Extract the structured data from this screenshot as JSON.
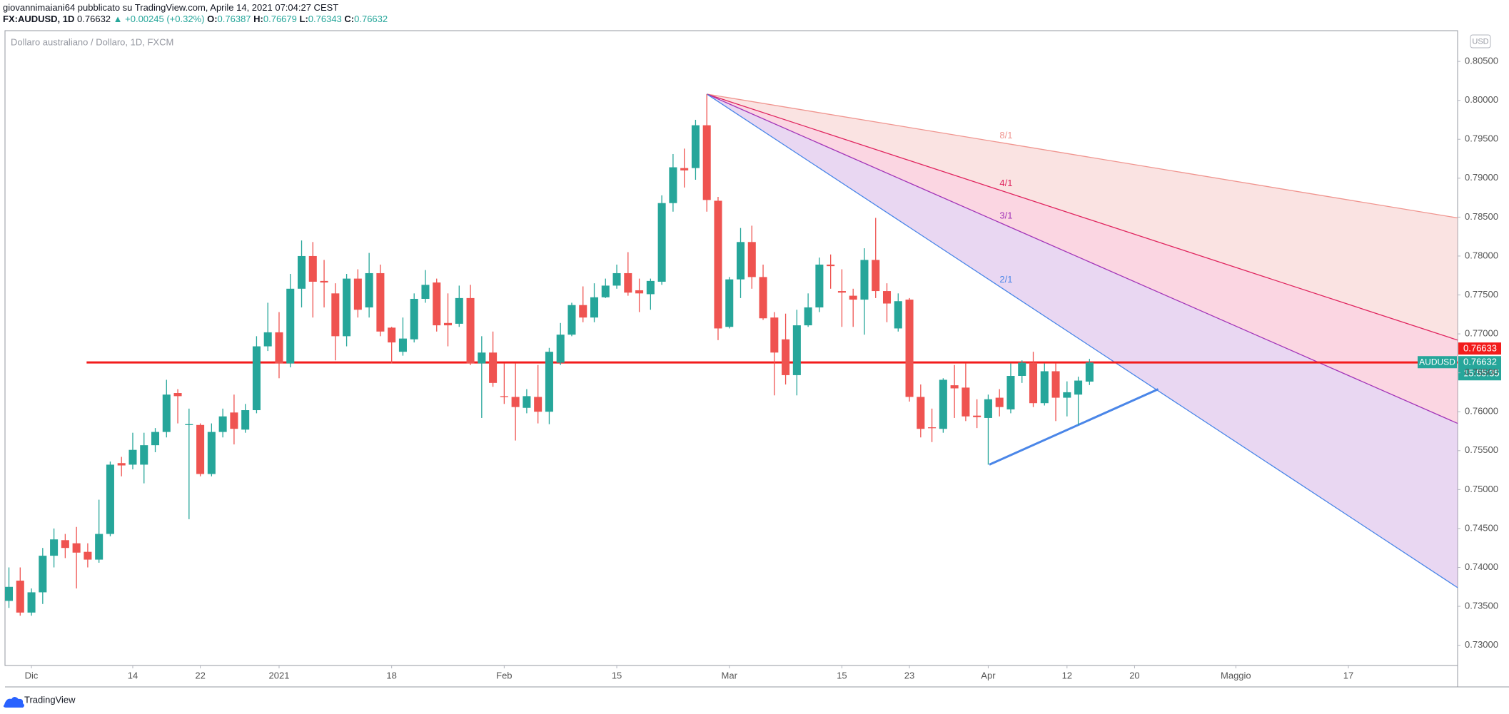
{
  "header": {
    "author_line": "giovannimaiani64 pubblicato su TradingView.com, Aprile 14, 2021 07:04:27 CEST",
    "symbol": "FX:AUDUSD, 1D",
    "last": "0.76632",
    "change": "▲ +0.00245 (+0.32%)",
    "ohlc": [
      {
        "label": "O:",
        "value": "0.76387"
      },
      {
        "label": "H:",
        "value": "0.76679"
      },
      {
        "label": "L:",
        "value": "0.76343"
      },
      {
        "label": "C:",
        "value": "0.76632"
      }
    ]
  },
  "chart_data": {
    "type": "candlestick",
    "legend_text": "Dollaro australiano / Dollaro, 1D, FXCM",
    "currency": "USD",
    "up_color": "#26a69a",
    "down_color": "#ef5350",
    "open": [
      0.7357,
      0.7383,
      0.7342,
      0.7368,
      0.7415,
      0.7435,
      0.7431,
      0.742,
      0.741,
      0.7443,
      0.7534,
      0.7532,
      0.7532,
      0.7557,
      0.7574,
      0.7624,
      0.7583,
      0.7583,
      0.752,
      0.7574,
      0.7599,
      0.7577,
      0.7602,
      0.7684,
      0.7702,
      0.7662,
      0.7758,
      0.78,
      0.7768,
      0.7752,
      0.7697,
      0.7771,
      0.7734,
      0.7778,
      0.7708,
      0.7677,
      0.7693,
      0.7745,
      0.7766,
      0.7714,
      0.7713,
      0.7746,
      0.7662,
      0.7676,
      0.762,
      0.7619,
      0.7605,
      0.7619,
      0.76,
      0.7663,
      0.7699,
      0.7737,
      0.7721,
      0.7747,
      0.7762,
      0.7778,
      0.7756,
      0.7751,
      0.7767,
      0.7868,
      0.7913,
      0.7913,
      0.7968,
      0.7871,
      0.7709,
      0.777,
      0.7818,
      0.7773,
      0.7721,
      0.7693,
      0.7647,
      0.7711,
      0.7734,
      0.7789,
      0.7755,
      0.7749,
      0.7744,
      0.7795,
      0.7755,
      0.7707,
      0.7744,
      0.7619,
      0.758,
      0.7578,
      0.7634,
      0.7631,
      0.7595,
      0.7592,
      0.7618,
      0.7603,
      0.7646,
      0.7663,
      0.7611,
      0.7652,
      0.7618,
      0.7622,
      0.76387
    ],
    "high": [
      0.74,
      0.74,
      0.7373,
      0.7425,
      0.745,
      0.7443,
      0.7452,
      0.7431,
      0.7487,
      0.7536,
      0.7542,
      0.7573,
      0.7573,
      0.7579,
      0.7641,
      0.7629,
      0.7604,
      0.7585,
      0.7585,
      0.7604,
      0.7622,
      0.761,
      0.7697,
      0.774,
      0.7728,
      0.7777,
      0.782,
      0.7818,
      0.7795,
      0.7765,
      0.7777,
      0.7783,
      0.7804,
      0.7789,
      0.7709,
      0.7721,
      0.7752,
      0.7782,
      0.7771,
      0.7752,
      0.7762,
      0.7763,
      0.7697,
      0.7703,
      0.7662,
      0.7662,
      0.7629,
      0.766,
      0.7682,
      0.7714,
      0.774,
      0.7761,
      0.7765,
      0.7771,
      0.7789,
      0.7805,
      0.7771,
      0.7771,
      0.7878,
      0.7931,
      0.7938,
      0.7975,
      0.8008,
      0.7876,
      0.7773,
      0.7836,
      0.7839,
      0.7789,
      0.7728,
      0.7726,
      0.7731,
      0.7752,
      0.7798,
      0.7802,
      0.7783,
      0.7758,
      0.781,
      0.7849,
      0.7765,
      0.7752,
      0.7746,
      0.7635,
      0.7604,
      0.7643,
      0.766,
      0.7662,
      0.7616,
      0.7622,
      0.7629,
      0.7662,
      0.7666,
      0.7677,
      0.7662,
      0.7662,
      0.7639,
      0.7645,
      0.76679
    ],
    "low": [
      0.7348,
      0.7338,
      0.7338,
      0.7353,
      0.74,
      0.7412,
      0.7373,
      0.74,
      0.7406,
      0.744,
      0.7517,
      0.7526,
      0.7508,
      0.7548,
      0.7567,
      0.7585,
      0.7462,
      0.7517,
      0.7517,
      0.7567,
      0.7558,
      0.7573,
      0.7598,
      0.7678,
      0.7643,
      0.7657,
      0.7734,
      0.7721,
      0.7734,
      0.7666,
      0.7684,
      0.7721,
      0.7721,
      0.7697,
      0.7662,
      0.7672,
      0.7689,
      0.774,
      0.7703,
      0.7684,
      0.7709,
      0.766,
      0.7592,
      0.7632,
      0.761,
      0.7563,
      0.7598,
      0.7585,
      0.7584,
      0.766,
      0.7697,
      0.7715,
      0.7715,
      0.7746,
      0.7758,
      0.7749,
      0.7728,
      0.7731,
      0.7763,
      0.7857,
      0.7888,
      0.7898,
      0.7857,
      0.7692,
      0.7707,
      0.7746,
      0.7758,
      0.7718,
      0.7621,
      0.7635,
      0.7621,
      0.7709,
      0.7728,
      0.7758,
      0.7709,
      0.7709,
      0.7699,
      0.7746,
      0.7715,
      0.7703,
      0.7613,
      0.7567,
      0.7561,
      0.7573,
      0.7592,
      0.7588,
      0.7579,
      0.7532,
      0.7594,
      0.7598,
      0.7637,
      0.7606,
      0.7608,
      0.7588,
      0.7594,
      0.7583,
      0.76343
    ],
    "close": [
      0.7375,
      0.7342,
      0.7368,
      0.7415,
      0.7436,
      0.7425,
      0.7419,
      0.741,
      0.7443,
      0.7532,
      0.7531,
      0.7551,
      0.7557,
      0.7574,
      0.7622,
      0.762,
      0.7584,
      0.752,
      0.7574,
      0.7594,
      0.7578,
      0.7602,
      0.7684,
      0.7702,
      0.7662,
      0.7758,
      0.78,
      0.7767,
      0.7766,
      0.7697,
      0.7771,
      0.7731,
      0.7778,
      0.7703,
      0.7689,
      0.7694,
      0.7745,
      0.7763,
      0.7711,
      0.7711,
      0.7746,
      0.7662,
      0.7676,
      0.7637,
      0.7619,
      0.7606,
      0.762,
      0.76,
      0.7677,
      0.7699,
      0.7737,
      0.7721,
      0.7747,
      0.7762,
      0.7778,
      0.7753,
      0.7752,
      0.7768,
      0.7868,
      0.7914,
      0.791,
      0.7968,
      0.7872,
      0.7707,
      0.777,
      0.7818,
      0.7773,
      0.772,
      0.7676,
      0.7647,
      0.7711,
      0.7734,
      0.7789,
      0.7787,
      0.7753,
      0.7744,
      0.7795,
      0.7755,
      0.7739,
      0.7742,
      0.7619,
      0.7578,
      0.7579,
      0.7641,
      0.763,
      0.7594,
      0.7593,
      0.7616,
      0.7606,
      0.7646,
      0.7663,
      0.7611,
      0.7652,
      0.7618,
      0.7625,
      0.764,
      0.76632
    ],
    "xlim": [
      -0.35,
      128.7
    ],
    "ylim": [
      0.7274,
      0.80895
    ],
    "xticks": [
      {
        "value": 2,
        "label": "Dic"
      },
      {
        "value": 11,
        "label": "14"
      },
      {
        "value": 17,
        "label": "22"
      },
      {
        "value": 24,
        "label": "2021"
      },
      {
        "value": 34,
        "label": "18"
      },
      {
        "value": 44,
        "label": "Feb"
      },
      {
        "value": 54,
        "label": "15"
      },
      {
        "value": 64,
        "label": "Mar"
      },
      {
        "value": 74,
        "label": "15"
      },
      {
        "value": 80,
        "label": "23"
      },
      {
        "value": 87,
        "label": "Apr"
      },
      {
        "value": 94,
        "label": "12"
      },
      {
        "value": 100,
        "label": "20"
      },
      {
        "value": 109,
        "label": "Maggio"
      },
      {
        "value": 119,
        "label": "17"
      }
    ],
    "yticks": [
      {
        "value": 0.805,
        "label": "0.80500"
      },
      {
        "value": 0.8,
        "label": "0.80000"
      },
      {
        "value": 0.795,
        "label": "0.79500"
      },
      {
        "value": 0.79,
        "label": "0.79000"
      },
      {
        "value": 0.785,
        "label": "0.78500"
      },
      {
        "value": 0.78,
        "label": "0.78000"
      },
      {
        "value": 0.775,
        "label": "0.77500"
      },
      {
        "value": 0.77,
        "label": "0.77000"
      },
      {
        "value": 0.765,
        "label": "0.76500"
      },
      {
        "value": 0.76,
        "label": "0.76000"
      },
      {
        "value": 0.755,
        "label": "0.75500"
      },
      {
        "value": 0.75,
        "label": "0.75000"
      },
      {
        "value": 0.745,
        "label": "0.74500"
      },
      {
        "value": 0.74,
        "label": "0.74000"
      },
      {
        "value": 0.735,
        "label": "0.73500"
      },
      {
        "value": 0.73,
        "label": "0.73000"
      }
    ],
    "horizontal_line": {
      "value": 0.76633,
      "x_start": 6.9,
      "color": "#f21c1c"
    },
    "trendline": {
      "x": [
        87.1,
        102.1
      ],
      "y": [
        0.7532,
        0.7629
      ],
      "color": "#4a86e8"
    },
    "fan": {
      "origin_x": 62,
      "origin_y": 0.8008,
      "lines": [
        {
          "label": "8/1",
          "end_x": 128.7,
          "end_y": 0.7849,
          "color": "#f0958f"
        },
        {
          "label": "4/1",
          "end_x": 128.7,
          "end_y": 0.7692,
          "color": "#e0245e"
        },
        {
          "label": "3/1",
          "end_x": 128.7,
          "end_y": 0.7585,
          "color": "#a334b8"
        },
        {
          "label": "2/1",
          "end_x": 128.7,
          "end_y": 0.7374,
          "color": "#4a86e8"
        }
      ],
      "fills": [
        "#f5c2bf",
        "#f6a3bf",
        "#cfa6e3"
      ]
    },
    "symbol_label": "AUDUSD",
    "last_price": 0.76632,
    "countdown": "15:55:35"
  },
  "footer": {
    "brand": "TradingView"
  }
}
